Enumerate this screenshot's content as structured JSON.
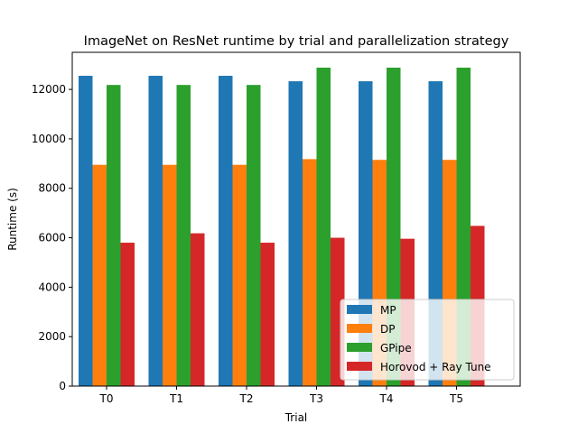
{
  "chart_data": {
    "type": "bar",
    "title": "ImageNet on ResNet runtime by trial and parallelization strategy",
    "xlabel": "Trial",
    "ylabel": "Runtime (s)",
    "categories": [
      "T0",
      "T1",
      "T2",
      "T3",
      "T4",
      "T5"
    ],
    "ylim": [
      0,
      13500
    ],
    "yticks": [
      0,
      2000,
      4000,
      6000,
      8000,
      10000,
      12000
    ],
    "grid": false,
    "legend_position": "lower-right",
    "series": [
      {
        "name": "MP",
        "color": "#1f77b4",
        "values": [
          12550,
          12550,
          12550,
          12330,
          12330,
          12330
        ]
      },
      {
        "name": "DP",
        "color": "#ff7f0e",
        "values": [
          8950,
          8950,
          8950,
          9180,
          9150,
          9150
        ]
      },
      {
        "name": "GPipe",
        "color": "#2ca02c",
        "values": [
          12180,
          12180,
          12180,
          12880,
          12880,
          12880
        ]
      },
      {
        "name": "Horovod + Ray Tune",
        "color": "#d62728",
        "values": [
          5800,
          6180,
          5800,
          6000,
          5960,
          6480
        ]
      }
    ]
  }
}
